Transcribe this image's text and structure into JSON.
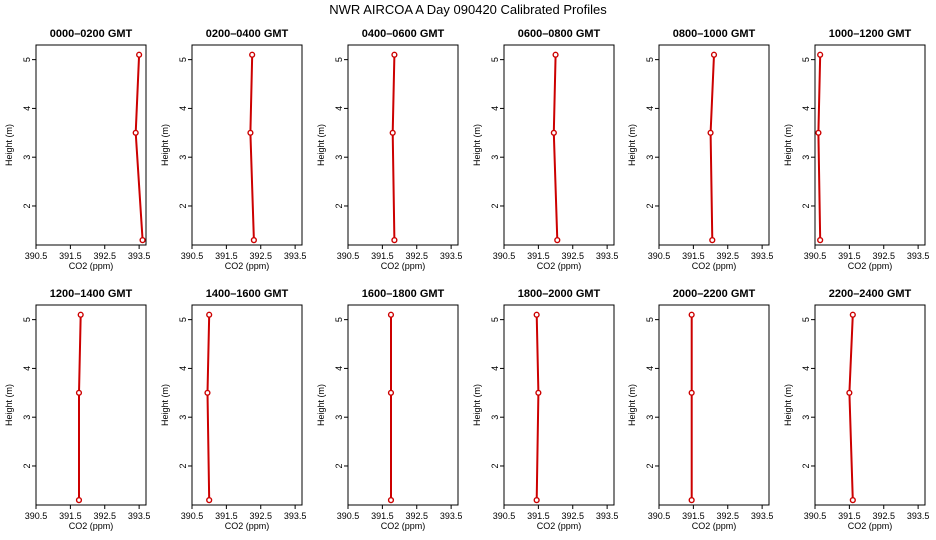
{
  "figure": {
    "title": "NWR AIRCOA A  Day 090420  Calibrated Profiles"
  },
  "chart_data": [
    {
      "type": "line",
      "title": "0000–0200 GMT",
      "xlabel": "CO2 (ppm)",
      "ylabel": "Height (m)",
      "xlim": [
        390.5,
        393.7
      ],
      "ylim": [
        1.2,
        5.3
      ],
      "xticks": [
        390.5,
        391.5,
        392.5,
        393.5
      ],
      "xtick_labels": [
        "390.5",
        "391.5",
        "392.5",
        "393.5"
      ],
      "yticks": [
        2,
        3,
        4,
        5
      ],
      "ytick_labels": [
        "2",
        "3",
        "4",
        "5"
      ],
      "series": [
        {
          "x": [
            393.5,
            393.4,
            393.6
          ],
          "y": [
            5.1,
            3.5,
            1.3
          ],
          "color": "#cc0000"
        }
      ]
    },
    {
      "type": "line",
      "title": "0200–0400 GMT",
      "xlabel": "CO2 (ppm)",
      "ylabel": "Height (m)",
      "xlim": [
        390.5,
        393.7
      ],
      "ylim": [
        1.2,
        5.3
      ],
      "xticks": [
        390.5,
        391.5,
        392.5,
        393.5
      ],
      "xtick_labels": [
        "390.5",
        "391.5",
        "392.5",
        "393.5"
      ],
      "yticks": [
        2,
        3,
        4,
        5
      ],
      "ytick_labels": [
        "2",
        "3",
        "4",
        "5"
      ],
      "series": [
        {
          "x": [
            392.25,
            392.2,
            392.3
          ],
          "y": [
            5.1,
            3.5,
            1.3
          ],
          "color": "#cc0000"
        }
      ]
    },
    {
      "type": "line",
      "title": "0400–0600 GMT",
      "xlabel": "CO2 (ppm)",
      "ylabel": "Height (m)",
      "xlim": [
        390.5,
        393.7
      ],
      "ylim": [
        1.2,
        5.3
      ],
      "xticks": [
        390.5,
        391.5,
        392.5,
        393.5
      ],
      "xtick_labels": [
        "390.5",
        "391.5",
        "392.5",
        "393.5"
      ],
      "yticks": [
        2,
        3,
        4,
        5
      ],
      "ytick_labels": [
        "2",
        "3",
        "4",
        "5"
      ],
      "series": [
        {
          "x": [
            391.85,
            391.8,
            391.85
          ],
          "y": [
            5.1,
            3.5,
            1.3
          ],
          "color": "#cc0000"
        }
      ]
    },
    {
      "type": "line",
      "title": "0600–0800 GMT",
      "xlabel": "CO2 (ppm)",
      "ylabel": "Height (m)",
      "xlim": [
        390.5,
        393.7
      ],
      "ylim": [
        1.2,
        5.3
      ],
      "xticks": [
        390.5,
        391.5,
        392.5,
        393.5
      ],
      "xtick_labels": [
        "390.5",
        "391.5",
        "392.5",
        "393.5"
      ],
      "yticks": [
        2,
        3,
        4,
        5
      ],
      "ytick_labels": [
        "2",
        "3",
        "4",
        "5"
      ],
      "series": [
        {
          "x": [
            392.0,
            391.95,
            392.05
          ],
          "y": [
            5.1,
            3.5,
            1.3
          ],
          "color": "#cc0000"
        }
      ]
    },
    {
      "type": "line",
      "title": "0800–1000 GMT",
      "xlabel": "CO2 (ppm)",
      "ylabel": "Height (m)",
      "xlim": [
        390.5,
        393.7
      ],
      "ylim": [
        1.2,
        5.3
      ],
      "xticks": [
        390.5,
        391.5,
        392.5,
        393.5
      ],
      "xtick_labels": [
        "390.5",
        "391.5",
        "392.5",
        "393.5"
      ],
      "yticks": [
        2,
        3,
        4,
        5
      ],
      "ytick_labels": [
        "2",
        "3",
        "4",
        "5"
      ],
      "series": [
        {
          "x": [
            392.1,
            392.0,
            392.05
          ],
          "y": [
            5.1,
            3.5,
            1.3
          ],
          "color": "#cc0000"
        }
      ]
    },
    {
      "type": "line",
      "title": "1000–1200 GMT",
      "xlabel": "CO2 (ppm)",
      "ylabel": "Height (m)",
      "xlim": [
        390.5,
        393.7
      ],
      "ylim": [
        1.2,
        5.3
      ],
      "xticks": [
        390.5,
        391.5,
        392.5,
        393.5
      ],
      "xtick_labels": [
        "390.5",
        "391.5",
        "392.5",
        "393.5"
      ],
      "yticks": [
        2,
        3,
        4,
        5
      ],
      "ytick_labels": [
        "2",
        "3",
        "4",
        "5"
      ],
      "series": [
        {
          "x": [
            390.65,
            390.6,
            390.65
          ],
          "y": [
            5.1,
            3.5,
            1.3
          ],
          "color": "#cc0000"
        }
      ]
    },
    {
      "type": "line",
      "title": "1200–1400 GMT",
      "xlabel": "CO2 (ppm)",
      "ylabel": "Height (m)",
      "xlim": [
        390.5,
        393.7
      ],
      "ylim": [
        1.2,
        5.3
      ],
      "xticks": [
        390.5,
        391.5,
        392.5,
        393.5
      ],
      "xtick_labels": [
        "390.5",
        "391.5",
        "392.5",
        "393.5"
      ],
      "yticks": [
        2,
        3,
        4,
        5
      ],
      "ytick_labels": [
        "2",
        "3",
        "4",
        "5"
      ],
      "series": [
        {
          "x": [
            391.8,
            391.75,
            391.75
          ],
          "y": [
            5.1,
            3.5,
            1.3
          ],
          "color": "#cc0000"
        }
      ]
    },
    {
      "type": "line",
      "title": "1400–1600 GMT",
      "xlabel": "CO2 (ppm)",
      "ylabel": "Height (m)",
      "xlim": [
        390.5,
        393.7
      ],
      "ylim": [
        1.2,
        5.3
      ],
      "xticks": [
        390.5,
        391.5,
        392.5,
        393.5
      ],
      "xtick_labels": [
        "390.5",
        "391.5",
        "392.5",
        "393.5"
      ],
      "yticks": [
        2,
        3,
        4,
        5
      ],
      "ytick_labels": [
        "2",
        "3",
        "4",
        "5"
      ],
      "series": [
        {
          "x": [
            391.0,
            390.95,
            391.0
          ],
          "y": [
            5.1,
            3.5,
            1.3
          ],
          "color": "#cc0000"
        }
      ]
    },
    {
      "type": "line",
      "title": "1600–1800 GMT",
      "xlabel": "CO2 (ppm)",
      "ylabel": "Height (m)",
      "xlim": [
        390.5,
        393.7
      ],
      "ylim": [
        1.2,
        5.3
      ],
      "xticks": [
        390.5,
        391.5,
        392.5,
        393.5
      ],
      "xtick_labels": [
        "390.5",
        "391.5",
        "392.5",
        "393.5"
      ],
      "yticks": [
        2,
        3,
        4,
        5
      ],
      "ytick_labels": [
        "2",
        "3",
        "4",
        "5"
      ],
      "series": [
        {
          "x": [
            391.75,
            391.75,
            391.75
          ],
          "y": [
            5.1,
            3.5,
            1.3
          ],
          "color": "#cc0000"
        }
      ]
    },
    {
      "type": "line",
      "title": "1800–2000 GMT",
      "xlabel": "CO2 (ppm)",
      "ylabel": "Height (m)",
      "xlim": [
        390.5,
        393.7
      ],
      "ylim": [
        1.2,
        5.3
      ],
      "xticks": [
        390.5,
        391.5,
        392.5,
        393.5
      ],
      "xtick_labels": [
        "390.5",
        "391.5",
        "392.5",
        "393.5"
      ],
      "yticks": [
        2,
        3,
        4,
        5
      ],
      "ytick_labels": [
        "2",
        "3",
        "4",
        "5"
      ],
      "series": [
        {
          "x": [
            391.45,
            391.5,
            391.45
          ],
          "y": [
            5.1,
            3.5,
            1.3
          ],
          "color": "#cc0000"
        }
      ]
    },
    {
      "type": "line",
      "title": "2000–2200 GMT",
      "xlabel": "CO2 (ppm)",
      "ylabel": "Height (m)",
      "xlim": [
        390.5,
        393.7
      ],
      "ylim": [
        1.2,
        5.3
      ],
      "xticks": [
        390.5,
        391.5,
        392.5,
        393.5
      ],
      "xtick_labels": [
        "390.5",
        "391.5",
        "392.5",
        "393.5"
      ],
      "yticks": [
        2,
        3,
        4,
        5
      ],
      "ytick_labels": [
        "2",
        "3",
        "4",
        "5"
      ],
      "series": [
        {
          "x": [
            391.45,
            391.45,
            391.45
          ],
          "y": [
            5.1,
            3.5,
            1.3
          ],
          "color": "#cc0000"
        }
      ]
    },
    {
      "type": "line",
      "title": "2200–2400 GMT",
      "xlabel": "CO2 (ppm)",
      "ylabel": "Height (m)",
      "xlim": [
        390.5,
        393.7
      ],
      "ylim": [
        1.2,
        5.3
      ],
      "xticks": [
        390.5,
        391.5,
        392.5,
        393.5
      ],
      "xtick_labels": [
        "390.5",
        "391.5",
        "392.5",
        "393.5"
      ],
      "yticks": [
        2,
        3,
        4,
        5
      ],
      "ytick_labels": [
        "2",
        "3",
        "4",
        "5"
      ],
      "series": [
        {
          "x": [
            391.6,
            391.5,
            391.6
          ],
          "y": [
            5.1,
            3.5,
            1.3
          ],
          "color": "#cc0000"
        }
      ]
    }
  ]
}
